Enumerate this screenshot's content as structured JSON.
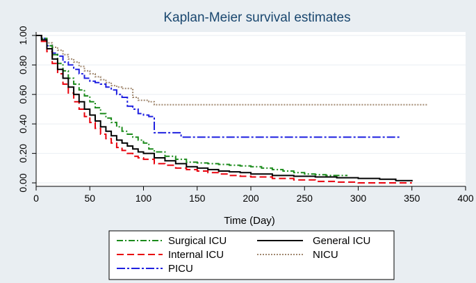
{
  "chart_data": {
    "type": "line",
    "title": "Kaplan-Meier survival estimates",
    "xlabel": "Time (Day)",
    "ylabel": "",
    "xlim": [
      0,
      400
    ],
    "ylim": [
      0,
      1
    ],
    "x_ticks": [
      0,
      50,
      100,
      150,
      200,
      250,
      300,
      350,
      400
    ],
    "x_tick_labels": [
      "0",
      "50",
      "100",
      "150",
      "200",
      "250",
      "300",
      "350",
      "400"
    ],
    "y_ticks": [
      0,
      0.2,
      0.4,
      0.6,
      0.8,
      1.0
    ],
    "y_tick_labels": [
      "0.00",
      "0.20",
      "0.40",
      "0.60",
      "0.80",
      "1.00"
    ],
    "grid": true,
    "legend_position": "bottom",
    "series": [
      {
        "name": "Surgical ICU",
        "color": "#1a8a1a",
        "dash": "9,3,2,3",
        "x": [
          0,
          5,
          10,
          15,
          20,
          25,
          30,
          35,
          40,
          45,
          50,
          55,
          60,
          65,
          70,
          75,
          80,
          85,
          90,
          95,
          100,
          105,
          110,
          120,
          130,
          140,
          150,
          160,
          170,
          180,
          190,
          200,
          210,
          220,
          230,
          240,
          250,
          260,
          270,
          280,
          290
        ],
        "y": [
          1.0,
          0.98,
          0.93,
          0.87,
          0.81,
          0.76,
          0.71,
          0.67,
          0.63,
          0.59,
          0.55,
          0.51,
          0.47,
          0.44,
          0.41,
          0.38,
          0.35,
          0.33,
          0.31,
          0.29,
          0.27,
          0.23,
          0.21,
          0.18,
          0.16,
          0.14,
          0.135,
          0.13,
          0.125,
          0.12,
          0.115,
          0.11,
          0.1,
          0.09,
          0.08,
          0.07,
          0.06,
          0.055,
          0.05,
          0.05,
          0.05
        ]
      },
      {
        "name": "General ICU",
        "color": "#000000",
        "dash": "",
        "x": [
          0,
          5,
          10,
          15,
          20,
          25,
          30,
          35,
          40,
          45,
          50,
          55,
          60,
          65,
          70,
          75,
          80,
          85,
          90,
          95,
          100,
          110,
          120,
          130,
          140,
          150,
          160,
          170,
          180,
          190,
          200,
          220,
          240,
          260,
          280,
          300,
          320,
          335,
          350
        ],
        "y": [
          1.0,
          0.97,
          0.91,
          0.84,
          0.77,
          0.71,
          0.65,
          0.6,
          0.55,
          0.5,
          0.46,
          0.42,
          0.38,
          0.35,
          0.32,
          0.29,
          0.27,
          0.25,
          0.23,
          0.21,
          0.2,
          0.17,
          0.15,
          0.13,
          0.11,
          0.1,
          0.09,
          0.08,
          0.075,
          0.07,
          0.06,
          0.05,
          0.045,
          0.04,
          0.035,
          0.03,
          0.025,
          0.015,
          0.01
        ]
      },
      {
        "name": "Internal ICU",
        "color": "#e8000b",
        "dash": "10,5",
        "x": [
          0,
          5,
          10,
          15,
          20,
          25,
          30,
          35,
          40,
          45,
          50,
          55,
          60,
          65,
          70,
          75,
          80,
          85,
          90,
          95,
          100,
          110,
          120,
          130,
          140,
          150,
          160,
          170,
          180,
          190,
          200,
          220,
          240,
          260,
          280,
          300,
          320,
          340,
          350
        ],
        "y": [
          1.0,
          0.96,
          0.89,
          0.81,
          0.74,
          0.67,
          0.61,
          0.55,
          0.5,
          0.45,
          0.41,
          0.37,
          0.33,
          0.3,
          0.27,
          0.24,
          0.22,
          0.2,
          0.18,
          0.17,
          0.16,
          0.13,
          0.12,
          0.1,
          0.09,
          0.08,
          0.07,
          0.06,
          0.05,
          0.045,
          0.04,
          0.03,
          0.02,
          0.01,
          0.005,
          0.0,
          0.0,
          0.0,
          0.0
        ]
      },
      {
        "name": "NICU",
        "color": "#a0876e",
        "dash": "2,2",
        "x": [
          0,
          5,
          10,
          15,
          20,
          25,
          30,
          35,
          40,
          45,
          50,
          55,
          60,
          65,
          70,
          75,
          80,
          85,
          90,
          95,
          100,
          105,
          110,
          130,
          150,
          200,
          250,
          300,
          365
        ],
        "y": [
          1.0,
          0.98,
          0.95,
          0.92,
          0.9,
          0.87,
          0.84,
          0.82,
          0.79,
          0.76,
          0.74,
          0.72,
          0.7,
          0.68,
          0.66,
          0.65,
          0.64,
          0.64,
          0.58,
          0.56,
          0.56,
          0.55,
          0.53,
          0.53,
          0.53,
          0.53,
          0.53,
          0.53,
          0.53
        ]
      },
      {
        "name": "PICU",
        "color": "#1f20e0",
        "dash": "12,3,3,3",
        "x": [
          0,
          5,
          10,
          15,
          20,
          25,
          30,
          35,
          40,
          45,
          50,
          55,
          60,
          65,
          70,
          75,
          80,
          85,
          90,
          95,
          100,
          105,
          110,
          115,
          125,
          135,
          150,
          200,
          250,
          300,
          340
        ],
        "y": [
          1.0,
          0.98,
          0.93,
          0.88,
          0.86,
          0.82,
          0.8,
          0.77,
          0.74,
          0.71,
          0.69,
          0.68,
          0.67,
          0.65,
          0.63,
          0.6,
          0.58,
          0.52,
          0.5,
          0.47,
          0.46,
          0.45,
          0.34,
          0.34,
          0.34,
          0.31,
          0.31,
          0.31,
          0.31,
          0.31,
          0.31
        ]
      }
    ],
    "legend": [
      [
        "Surgical ICU",
        "General ICU"
      ],
      [
        "Internal ICU",
        "NICU"
      ],
      [
        "PICU"
      ]
    ]
  }
}
